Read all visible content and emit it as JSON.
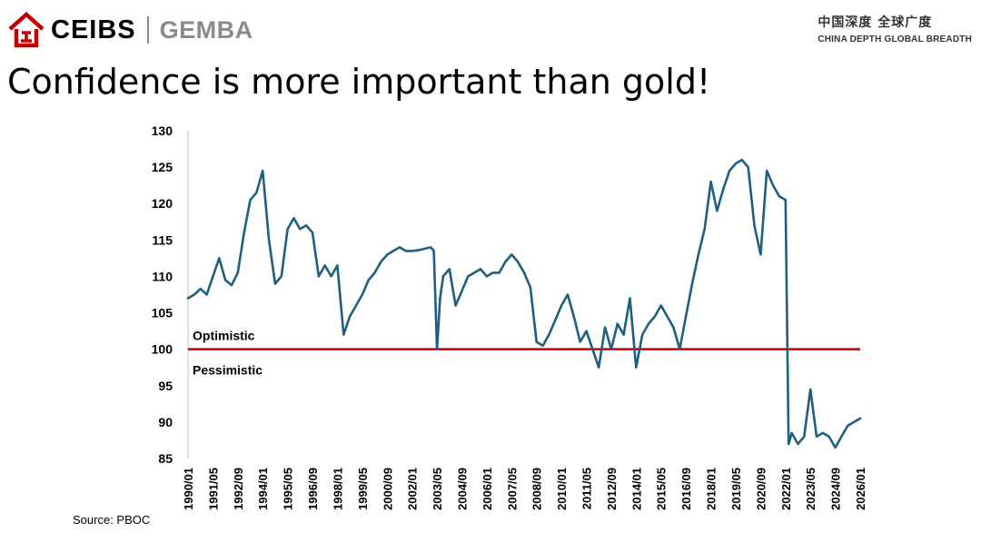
{
  "header": {
    "brand_primary": "CEIBS",
    "brand_secondary": "GEMBA",
    "tagline_cn": "中国深度 全球广度",
    "tagline_en": "CHINA DEPTH   GLOBAL BREADTH"
  },
  "slide": {
    "title": "Confidence is more important than gold!",
    "source": "Source: PBOC"
  },
  "colors": {
    "brand_red": "#c00000",
    "series_line": "#1f5f7f",
    "reference_line": "#c00000"
  },
  "chart_data": {
    "type": "line",
    "title": "",
    "xlabel": "",
    "ylabel": "",
    "ylim": [
      85,
      130
    ],
    "yticks": [
      85,
      90,
      95,
      100,
      105,
      110,
      115,
      120,
      125,
      130
    ],
    "xticks": [
      "1990/01",
      "1991/05",
      "1992/09",
      "1994/01",
      "1995/05",
      "1996/09",
      "1998/01",
      "1999/05",
      "2000/09",
      "2002/01",
      "2003/05",
      "2004/09",
      "2006/01",
      "2007/05",
      "2008/09",
      "2010/01",
      "2011/05",
      "2012/09",
      "2014/01",
      "2015/05",
      "2016/09",
      "2018/01",
      "2019/05",
      "2020/09",
      "2022/01",
      "2023/05",
      "2024/09",
      "2026/01"
    ],
    "grid": false,
    "reference_line": {
      "y": 100,
      "label_above": "Optimistic",
      "label_below": "Pessimistic"
    },
    "series": [
      {
        "x": [
          "1990/01",
          "1990/05",
          "1990/09",
          "1991/01",
          "1991/05",
          "1991/09",
          "1992/01",
          "1992/05",
          "1992/09",
          "1993/01",
          "1993/05",
          "1993/09",
          "1994/01",
          "1994/05",
          "1994/09",
          "1995/01",
          "1995/05",
          "1995/09",
          "1996/01",
          "1996/05",
          "1996/09",
          "1997/01",
          "1997/05",
          "1997/09",
          "1998/01",
          "1998/05",
          "1998/09",
          "1999/01",
          "1999/05",
          "1999/09",
          "2000/01",
          "2000/05",
          "2000/09",
          "2001/01",
          "2001/05",
          "2001/09",
          "2002/01",
          "2002/05",
          "2002/09",
          "2003/01",
          "2003/03",
          "2003/05",
          "2003/07",
          "2003/09",
          "2004/01",
          "2004/05",
          "2004/09",
          "2005/01",
          "2005/05",
          "2005/09",
          "2006/01",
          "2006/05",
          "2006/09",
          "2007/01",
          "2007/05",
          "2007/09",
          "2008/01",
          "2008/05",
          "2008/09",
          "2009/01",
          "2009/05",
          "2009/09",
          "2010/01",
          "2010/05",
          "2010/09",
          "2011/01",
          "2011/05",
          "2011/09",
          "2012/01",
          "2012/05",
          "2012/09",
          "2013/01",
          "2013/05",
          "2013/09",
          "2014/01",
          "2014/05",
          "2014/09",
          "2015/01",
          "2015/05",
          "2015/09",
          "2016/01",
          "2016/05",
          "2016/09",
          "2017/01",
          "2017/05",
          "2017/09",
          "2018/01",
          "2018/05",
          "2018/09",
          "2019/01",
          "2019/05",
          "2019/09",
          "2020/01",
          "2020/05",
          "2020/09",
          "2021/01",
          "2021/05",
          "2021/09",
          "2022/01",
          "2022/03",
          "2022/05",
          "2022/09",
          "2023/01",
          "2023/05",
          "2023/09",
          "2024/01",
          "2024/05",
          "2024/09",
          "2025/01",
          "2025/05",
          "2025/09",
          "2026/01"
        ],
        "values": [
          107.0,
          107.5,
          108.3,
          107.5,
          110.0,
          112.5,
          109.5,
          108.8,
          110.5,
          116.0,
          120.5,
          121.5,
          124.5,
          115.0,
          109.0,
          110.0,
          116.5,
          118.0,
          116.5,
          117.0,
          116.0,
          110.0,
          111.5,
          110.0,
          111.5,
          102.0,
          104.5,
          106.0,
          107.5,
          109.5,
          110.5,
          112.0,
          113.0,
          113.5,
          114.0,
          113.5,
          113.5,
          113.6,
          113.8,
          114.0,
          113.5,
          100.0,
          107.0,
          110.0,
          111.0,
          106.0,
          108.0,
          110.0,
          110.5,
          111.0,
          110.0,
          110.5,
          110.5,
          112.0,
          113.0,
          112.0,
          110.5,
          108.5,
          101.0,
          100.5,
          102.0,
          104.0,
          106.0,
          107.5,
          104.5,
          101.0,
          102.5,
          100.0,
          97.5,
          103.0,
          100.0,
          103.5,
          102.0,
          107.0,
          97.5,
          102.0,
          103.5,
          104.5,
          106.0,
          104.5,
          103.0,
          100.0,
          104.5,
          109.0,
          113.0,
          116.5,
          123.0,
          119.0,
          122.0,
          124.5,
          125.5,
          126.0,
          125.0,
          117.0,
          113.0,
          124.5,
          122.5,
          121.0,
          120.5,
          87.0,
          88.5,
          87.0,
          88.0,
          94.5,
          88.0,
          88.5,
          88.0,
          86.5,
          88.0,
          89.5,
          90.0,
          90.5
        ]
      }
    ]
  }
}
